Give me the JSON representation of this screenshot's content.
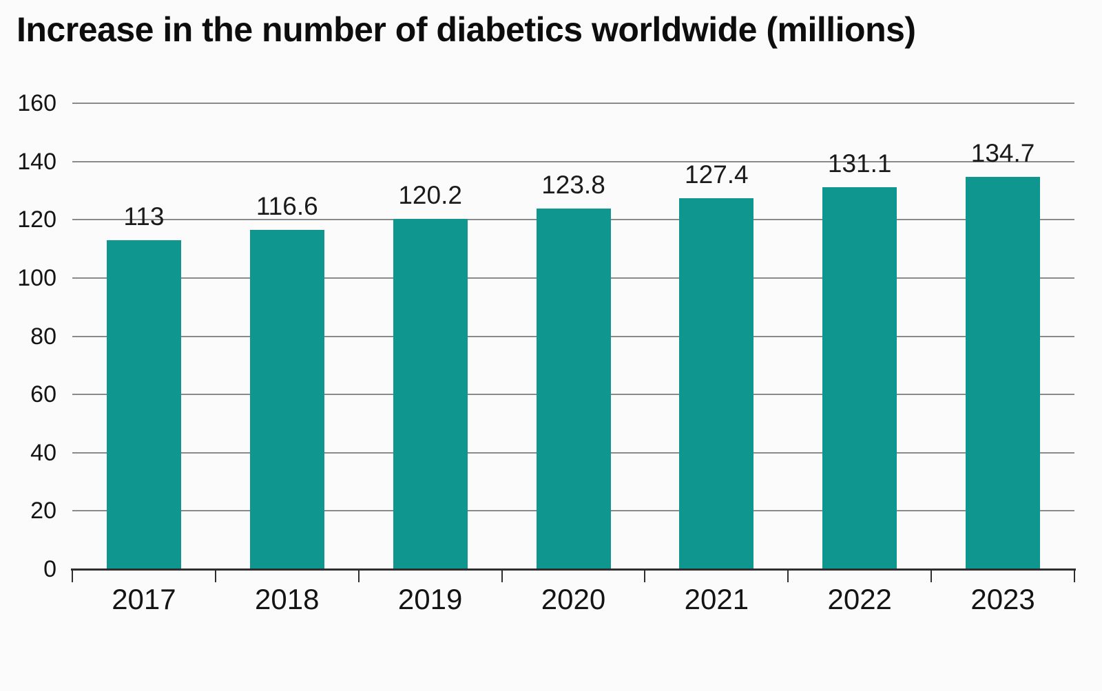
{
  "title": "Increase in the number of diabetics worldwide (millions)",
  "chart_data": {
    "type": "bar",
    "title": "Increase in the number of diabetics worldwide (millions)",
    "categories": [
      "2017",
      "2018",
      "2019",
      "2020",
      "2021",
      "2022",
      "2023"
    ],
    "values": [
      113,
      116.6,
      120.2,
      123.8,
      127.4,
      131.1,
      134.7
    ],
    "value_labels": [
      "113",
      "116.6",
      "120.2",
      "123.8",
      "127.4",
      "131.1",
      "134.7"
    ],
    "xlabel": "",
    "ylabel": "",
    "ylim": [
      0,
      160
    ],
    "yticks": [
      0,
      20,
      40,
      60,
      80,
      100,
      120,
      140,
      160
    ],
    "grid": true,
    "legend": false,
    "colors": {
      "bar": "#0F968E",
      "gridline": "#8a8a8a",
      "axis": "#2e2e2e",
      "text": "#141414",
      "background": "#fbfbfb"
    }
  }
}
